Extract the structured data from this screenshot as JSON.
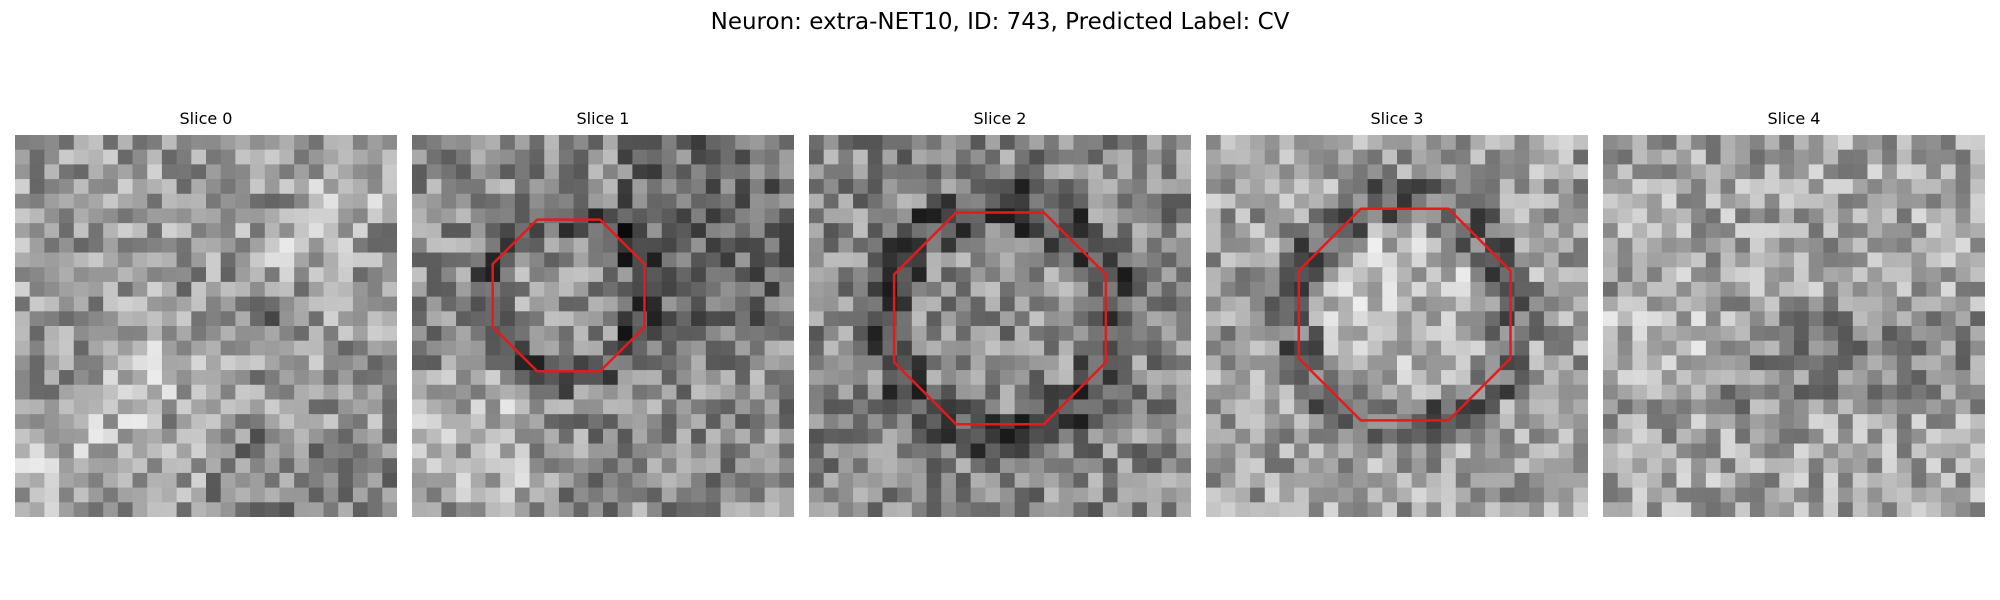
{
  "figure": {
    "title": "Neuron: extra-NET10, ID: 743, Predicted Label: CV"
  },
  "panels": [
    {
      "title": "Slice 0",
      "contour": false,
      "seed": 11,
      "brightness": 155,
      "darkRing": false,
      "blob": "light-diag"
    },
    {
      "title": "Slice 1",
      "contour": true,
      "seed": 23,
      "brightness": 140,
      "darkRing": true,
      "blob": "left-light"
    },
    {
      "title": "Slice 2",
      "contour": true,
      "seed": 37,
      "brightness": 135,
      "darkRing": true,
      "blob": "center"
    },
    {
      "title": "Slice 3",
      "contour": true,
      "seed": 51,
      "brightness": 160,
      "darkRing": true,
      "blob": "bright-center"
    },
    {
      "title": "Slice 4",
      "contour": false,
      "seed": 67,
      "brightness": 165,
      "darkRing": false,
      "blob": "mottled"
    }
  ],
  "style": {
    "contour_color": "#e41a1c",
    "colormap": "gray"
  }
}
